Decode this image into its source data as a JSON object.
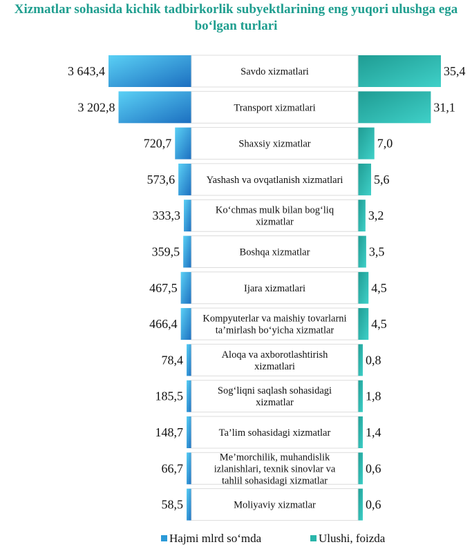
{
  "title": "Xizmatlar sohasida kichik tadbirkorlik subyektlarining eng yuqori ulushga ega bo‘lgan turlari",
  "chart_data": {
    "type": "bar",
    "categories": [
      "Savdo xizmatlari",
      "Transport xizmatlari",
      "Shaxsiy xizmatlar",
      "Yashash va ovqatlanish xizmatlari",
      "Ko‘chmas mulk bilan bog‘liq xizmatlar",
      "Boshqa xizmatlar",
      "Ijara xizmatlari",
      "Kompyuterlar va maishiy tovarlarni ta’mirlash bo‘yicha xizmatlar",
      "Aloqa va axborotlashtirish xizmatlari",
      "Sog‘liqni saqlash sohasidagi xizmatlar",
      "Ta’lim sohasidagi xizmatlar",
      "Me’morchilik, muhandislik izlanishlari, texnik sinovlar va tahlil sohasidagi xizmatlar",
      "Moliyaviy  xizmatlar"
    ],
    "series": [
      {
        "name": "Hajmi  mlrd so‘mda",
        "labels": [
          "3 643,4",
          "3 202,8",
          "720,7",
          "573,6",
          "333,3",
          "359,5",
          "467,5",
          "466,4",
          "78,4",
          "185,5",
          "148,7",
          "66,7",
          "58,5"
        ],
        "values": [
          3643.4,
          3202.8,
          720.7,
          573.6,
          333.3,
          359.5,
          467.5,
          466.4,
          78.4,
          185.5,
          148.7,
          66.7,
          58.5
        ],
        "color": "#2b9ad8"
      },
      {
        "name": "Ulushi, foizda",
        "labels": [
          "35,4",
          "31,1",
          "7,0",
          "5,6",
          "3,2",
          "3,5",
          "4,5",
          "4,5",
          "0,8",
          "1,8",
          "1,4",
          "0,6",
          "0,6"
        ],
        "values": [
          35.4,
          31.1,
          7.0,
          5.6,
          3.2,
          3.5,
          4.5,
          4.5,
          0.8,
          1.8,
          1.4,
          0.6,
          0.6
        ],
        "color": "#2ab5aa"
      }
    ],
    "legend_position": "bottom"
  }
}
